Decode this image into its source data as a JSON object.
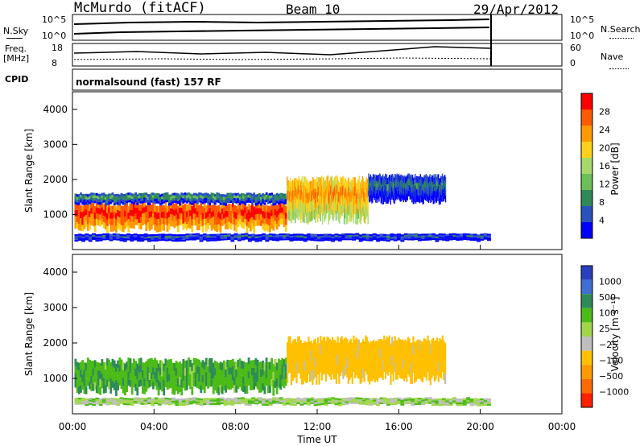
{
  "header": {
    "station": "McMurdo (fitACF)",
    "beam": "Beam 10",
    "date": "29/Apr/2012"
  },
  "strips": {
    "nsky_label": "N.Sky",
    "nsky_ticks": [
      "10^5",
      "10^0"
    ],
    "nsearch_label": "N.Search",
    "nsearch_ticks": [
      "10^5",
      "10^0"
    ],
    "freq_label_1": "Freq.",
    "freq_label_2": "[MHz]",
    "freq_ticks": [
      "18",
      "8"
    ],
    "nave_label": "Nave",
    "nave_ticks": [
      "60",
      "0"
    ],
    "cpid_label": "CPID",
    "cpid_text": "normalsound (fast) 157 RF"
  },
  "colors": {
    "power": [
      "#0000ff",
      "#2a52be",
      "#2e8b57",
      "#6bbf59",
      "#a6d96a",
      "#ffd11a",
      "#ff9a00",
      "#ff5a00",
      "#ff0000"
    ],
    "velocity": [
      "#2a3fbf",
      "#3f6fd0",
      "#2e8b57",
      "#4cbb17",
      "#a0d64a",
      "#bebebe",
      "#ffc000",
      "#ff9a00",
      "#ff6a00",
      "#ff2000"
    ]
  },
  "chart_data": [
    {
      "type": "heatmap",
      "name": "power",
      "ylabel": "Slant Range [km]",
      "xlim": [
        0,
        24
      ],
      "ylim": [
        0,
        4500
      ],
      "yticks": [
        "1000",
        "2000",
        "3000",
        "4000"
      ],
      "colorbar_label": "Power [dB]",
      "colorbar_ticks": [
        "4",
        "8",
        "12",
        "16",
        "20",
        "24",
        "28"
      ],
      "clim": [
        0,
        32
      ],
      "bands": [
        {
          "t0": 0.1,
          "t1": 10.5,
          "r0": 600,
          "r1": 1300,
          "level": 30
        },
        {
          "t0": 0.1,
          "t1": 10.5,
          "r0": 1300,
          "r1": 1600,
          "level": 10
        },
        {
          "t0": 10.5,
          "t1": 14.5,
          "r0": 900,
          "r1": 2000,
          "level": 24
        },
        {
          "t0": 14.5,
          "t1": 18.3,
          "r0": 1400,
          "r1": 2100,
          "level": 8
        },
        {
          "t0": 0.1,
          "t1": 20.5,
          "r0": 250,
          "r1": 450,
          "level": 6
        }
      ]
    },
    {
      "type": "heatmap",
      "name": "velocity",
      "ylabel": "Slant Range [km]",
      "xlabel": "Time UT",
      "xlim": [
        0,
        24
      ],
      "ylim": [
        0,
        4500
      ],
      "yticks": [
        "1000",
        "2000",
        "3000",
        "4000"
      ],
      "xticks": [
        "00:00",
        "04:00",
        "08:00",
        "12:00",
        "16:00",
        "20:00",
        "00:00"
      ],
      "colorbar_label": "Velocity [m s⁻¹]",
      "colorbar_ticks": [
        "1000",
        "500",
        "100",
        "25",
        "−25",
        "−100",
        "−500",
        "−1000"
      ],
      "bands": [
        {
          "t0": 0.1,
          "t1": 10.5,
          "r0": 650,
          "r1": 1500,
          "velocity": 80
        },
        {
          "t0": 10.5,
          "t1": 18.3,
          "r0": 1000,
          "r1": 2100,
          "velocity": -150
        },
        {
          "t0": 0.1,
          "t1": 20.5,
          "r0": 250,
          "r1": 450,
          "velocity": 0
        }
      ]
    }
  ]
}
